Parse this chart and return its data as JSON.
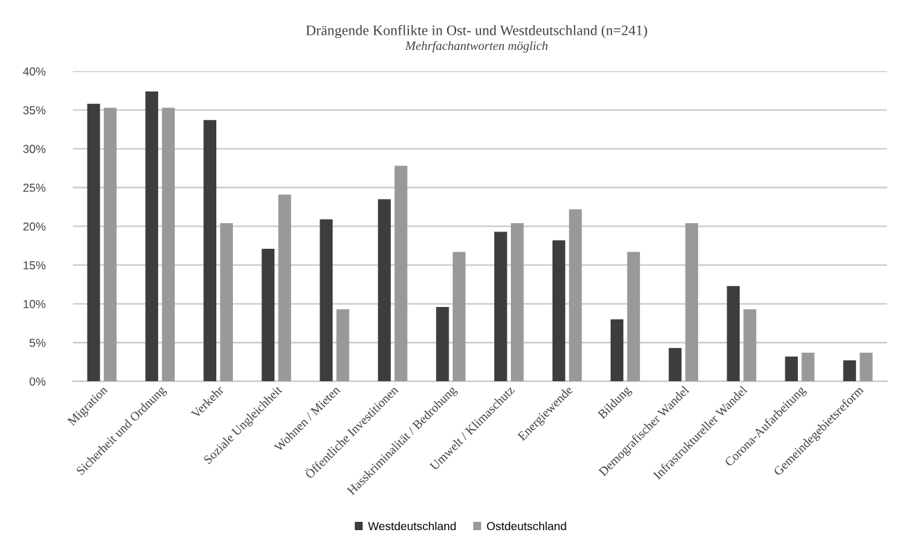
{
  "chart_data": {
    "type": "bar",
    "title": "Drängende Konflikte in Ost- und Westdeutschland (n=241)",
    "subtitle": "Mehrfachantworten möglich",
    "categories": [
      "Migration",
      "Sicherheit und Ordnung",
      "Verkehr",
      "Soziale Ungleichheit",
      "Wohnen / Mieten",
      "Öffentliche Investitionen",
      "Hasskriminalität / Bedrohung",
      "Umwelt / Klimaschutz",
      "Energiewende",
      "Bildung",
      "Demografischer Wandel",
      "Infrastruktureller Wandel",
      "Corona-Aufarbeitung",
      "Gemeindegebietsreform"
    ],
    "series": [
      {
        "name": "Westdeutschland",
        "color": "#3d3d3d",
        "values": [
          35.8,
          37.4,
          33.7,
          17.1,
          20.9,
          23.5,
          9.6,
          19.3,
          18.2,
          8.0,
          4.3,
          12.3,
          3.2,
          2.7
        ]
      },
      {
        "name": "Ostdeutschland",
        "color": "#999999",
        "values": [
          35.3,
          35.3,
          20.4,
          24.1,
          9.3,
          27.8,
          16.7,
          20.4,
          22.2,
          16.7,
          20.4,
          9.3,
          3.7,
          3.7
        ]
      }
    ],
    "ylim": [
      0,
      40
    ],
    "yticks": [
      {
        "value": 0,
        "label": "0%"
      },
      {
        "value": 5,
        "label": "5%"
      },
      {
        "value": 10,
        "label": "10%"
      },
      {
        "value": 15,
        "label": "15%"
      },
      {
        "value": 20,
        "label": "20%"
      },
      {
        "value": 25,
        "label": "25%"
      },
      {
        "value": 30,
        "label": "30%"
      },
      {
        "value": 35,
        "label": "35%"
      },
      {
        "value": 40,
        "label": "40%"
      }
    ],
    "grid": "y",
    "legend": "bottom"
  }
}
